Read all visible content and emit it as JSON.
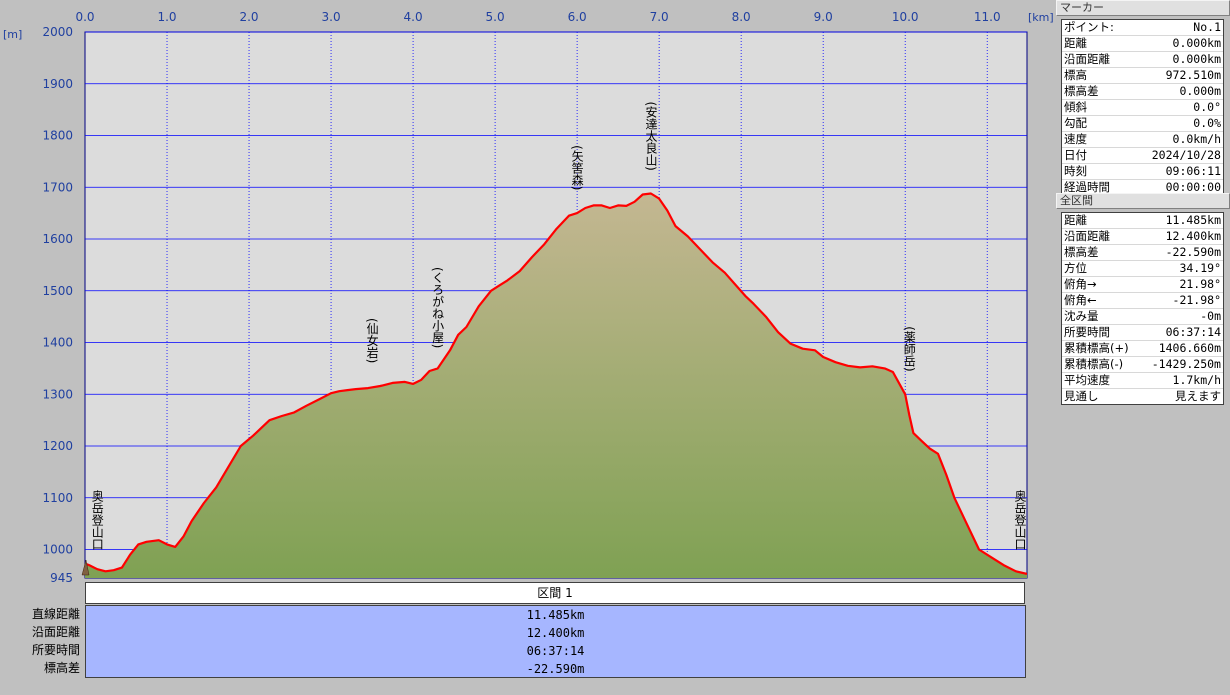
{
  "chart_data": {
    "type": "area",
    "xunit": "[km]",
    "yunit": "[m]",
    "xlim": [
      0,
      11.485
    ],
    "ylim": [
      945,
      2000
    ],
    "xticks": [
      0.0,
      1.0,
      2.0,
      3.0,
      4.0,
      5.0,
      6.0,
      7.0,
      8.0,
      9.0,
      10.0,
      11.0
    ],
    "xtick_labels": [
      "0.0",
      "1.0",
      "2.0",
      "3.0",
      "4.0",
      "5.0",
      "6.0",
      "7.0",
      "8.0",
      "9.0",
      "10.0",
      "11.0"
    ],
    "yticks": [
      1000,
      1100,
      1200,
      1300,
      1400,
      1500,
      1600,
      1700,
      1800,
      1900,
      2000
    ],
    "ytick_labels": [
      "1000",
      "1100",
      "1200",
      "1300",
      "1400",
      "1500",
      "1600",
      "1700",
      "1800",
      "1900",
      "2000"
    ],
    "ymin_label": "945",
    "grid": true,
    "series": [
      {
        "x": [
          0,
          0.05,
          0.15,
          0.25,
          0.35,
          0.45,
          0.55,
          0.65,
          0.75,
          0.9,
          1.0,
          1.1,
          1.2,
          1.3,
          1.45,
          1.6,
          1.75,
          1.9,
          2.05,
          2.15,
          2.25,
          2.4,
          2.55,
          2.7,
          2.85,
          3.0,
          3.1,
          3.2,
          3.3,
          3.45,
          3.6,
          3.75,
          3.9,
          4.0,
          4.1,
          4.2,
          4.3,
          4.45,
          4.55,
          4.65,
          4.8,
          4.95,
          5.05,
          5.15,
          5.3,
          5.45,
          5.6,
          5.75,
          5.9,
          6.0,
          6.1,
          6.2,
          6.3,
          6.4,
          6.5,
          6.6,
          6.7,
          6.8,
          6.9,
          7.0,
          7.1,
          7.2,
          7.35,
          7.5,
          7.65,
          7.8,
          7.95,
          8.05,
          8.15,
          8.3,
          8.45,
          8.6,
          8.75,
          8.9,
          9.0,
          9.15,
          9.3,
          9.45,
          9.6,
          9.75,
          9.85,
          10.0,
          10.05,
          10.1,
          10.2,
          10.3,
          10.4,
          10.5,
          10.6,
          10.75,
          10.9,
          11.05,
          11.2,
          11.35,
          11.485
        ],
        "y": [
          973,
          970,
          962,
          958,
          960,
          965,
          990,
          1010,
          1015,
          1018,
          1010,
          1005,
          1025,
          1055,
          1090,
          1120,
          1160,
          1200,
          1220,
          1235,
          1250,
          1258,
          1265,
          1278,
          1290,
          1302,
          1306,
          1308,
          1310,
          1312,
          1316,
          1322,
          1324,
          1320,
          1328,
          1345,
          1350,
          1385,
          1415,
          1430,
          1470,
          1500,
          1510,
          1520,
          1538,
          1565,
          1590,
          1620,
          1645,
          1650,
          1660,
          1665,
          1665,
          1660,
          1665,
          1664,
          1672,
          1686,
          1688,
          1678,
          1655,
          1625,
          1605,
          1580,
          1555,
          1535,
          1508,
          1490,
          1475,
          1450,
          1420,
          1398,
          1388,
          1385,
          1372,
          1362,
          1355,
          1352,
          1354,
          1350,
          1343,
          1300,
          1260,
          1225,
          1210,
          1195,
          1185,
          1145,
          1100,
          1050,
          1000,
          985,
          970,
          958,
          953
        ]
      }
    ],
    "annotations": [
      {
        "x": 0.15,
        "y": 958,
        "label": "奥岳登山口"
      },
      {
        "x": 3.5,
        "y": 1316,
        "label": "(仙女岩)"
      },
      {
        "x": 4.3,
        "y": 1345,
        "label": "(くろがね小屋)"
      },
      {
        "x": 6.0,
        "y": 1650,
        "label": "(矢筈森)"
      },
      {
        "x": 6.9,
        "y": 1688,
        "label": "(安達太良山)"
      },
      {
        "x": 10.05,
        "y": 1300,
        "label": "(薬師岳)"
      },
      {
        "x": 11.4,
        "y": 955,
        "label": "奥岳登山口"
      }
    ],
    "colors": {
      "plot_background": "#dcdcdc",
      "grid": "#0000ff",
      "profile_line": "#ff0000",
      "fill_low": "#7fa153",
      "fill_high": "#c4b792",
      "axis_text": "#2040a0"
    }
  },
  "marker_panel": {
    "title": "マーカー",
    "rows": [
      {
        "k": "ポイント:",
        "v": "No.1"
      },
      {
        "k": "距離",
        "v": "0.000km"
      },
      {
        "k": "沿面距離",
        "v": "0.000km"
      },
      {
        "k": "標高",
        "v": "972.510m"
      },
      {
        "k": "標高差",
        "v": "0.000m"
      },
      {
        "k": "傾斜",
        "v": "0.0°"
      },
      {
        "k": "勾配",
        "v": "0.0%"
      },
      {
        "k": "速度",
        "v": "0.0km/h"
      },
      {
        "k": "日付",
        "v": "2024/10/28"
      },
      {
        "k": "時刻",
        "v": "09:06:11"
      },
      {
        "k": "経過時間",
        "v": "00:00:00"
      }
    ]
  },
  "full_panel": {
    "title": "全区間",
    "rows": [
      {
        "k": "距離",
        "v": "11.485km"
      },
      {
        "k": "沿面距離",
        "v": "12.400km"
      },
      {
        "k": "標高差",
        "v": "-22.590m"
      },
      {
        "k": "方位",
        "v": "34.19°"
      },
      {
        "k": "俯角→",
        "v": "21.98°"
      },
      {
        "k": "俯角←",
        "v": "-21.98°"
      },
      {
        "k": "沈み量",
        "v": "-0m"
      },
      {
        "k": "所要時間",
        "v": "06:37:14"
      },
      {
        "k": "累積標高(+)",
        "v": "1406.660m"
      },
      {
        "k": "累積標高(-)",
        "v": "-1429.250m"
      },
      {
        "k": "平均速度",
        "v": "1.7km/h"
      },
      {
        "k": "見通し",
        "v": "見えます"
      }
    ]
  },
  "section": {
    "header": "区間 1",
    "labels": [
      "直線距離",
      "沿面距離",
      "所要時間",
      "標高差"
    ],
    "values": [
      "11.485km",
      "12.400km",
      "06:37:14",
      "-22.590m"
    ]
  }
}
